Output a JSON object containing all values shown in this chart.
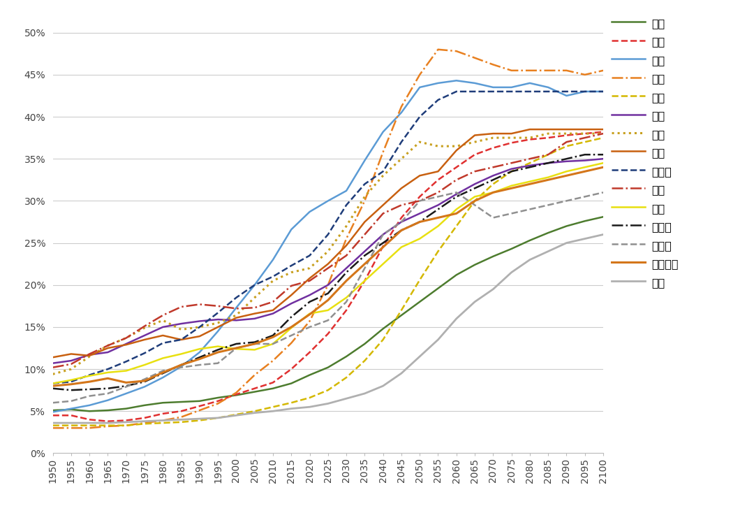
{
  "years": [
    1950,
    1955,
    1960,
    1965,
    1970,
    1975,
    1980,
    1985,
    1990,
    1995,
    2000,
    2005,
    2010,
    2015,
    2020,
    2025,
    2030,
    2035,
    2040,
    2045,
    2050,
    2055,
    2060,
    2065,
    2070,
    2075,
    2080,
    2085,
    2090,
    2095,
    2100
  ],
  "series": [
    {
      "name": "世界",
      "color": "#4d7c2e",
      "linestyle": "solid",
      "linewidth": 1.8,
      "data": [
        5.1,
        5.2,
        5.0,
        5.1,
        5.3,
        5.7,
        6.0,
        6.1,
        6.2,
        6.6,
        6.9,
        7.3,
        7.7,
        8.3,
        9.3,
        10.2,
        11.5,
        13.0,
        14.8,
        16.4,
        18.0,
        19.6,
        21.2,
        22.4,
        23.4,
        24.3,
        25.3,
        26.2,
        27.0,
        27.6,
        28.1
      ]
    },
    {
      "name": "中国",
      "color": "#e03030",
      "linestyle": "dashed",
      "linewidth": 1.8,
      "data": [
        4.5,
        4.5,
        4.0,
        3.8,
        3.9,
        4.2,
        4.7,
        5.0,
        5.6,
        6.2,
        7.0,
        7.7,
        8.4,
        10.0,
        12.0,
        14.2,
        17.0,
        20.5,
        24.6,
        28.0,
        30.5,
        32.5,
        34.0,
        35.5,
        36.3,
        36.9,
        37.3,
        37.5,
        37.8,
        38.0,
        38.2
      ]
    },
    {
      "name": "日本",
      "color": "#5b9bd5",
      "linestyle": "solid",
      "linewidth": 1.8,
      "data": [
        4.9,
        5.3,
        5.7,
        6.3,
        7.1,
        7.9,
        9.0,
        10.3,
        12.0,
        14.5,
        17.3,
        20.0,
        23.0,
        26.6,
        28.7,
        30.0,
        31.2,
        34.8,
        38.2,
        40.5,
        43.5,
        44.0,
        44.3,
        44.0,
        43.5,
        43.5,
        44.0,
        43.5,
        42.5,
        43.0,
        43.0
      ]
    },
    {
      "name": "韩国",
      "color": "#e88020",
      "linestyle": "dashdot",
      "linewidth": 1.8,
      "data": [
        3.0,
        3.0,
        3.0,
        3.2,
        3.3,
        3.6,
        3.9,
        4.3,
        5.1,
        5.9,
        7.2,
        9.3,
        11.0,
        13.1,
        15.7,
        20.0,
        25.5,
        30.0,
        35.8,
        41.2,
        45.0,
        48.0,
        47.8,
        47.0,
        46.2,
        45.5,
        45.5,
        45.5,
        45.5,
        45.0,
        45.5
      ]
    },
    {
      "name": "印度",
      "color": "#d4b800",
      "linestyle": "dashed",
      "linewidth": 1.8,
      "data": [
        3.3,
        3.3,
        3.3,
        3.3,
        3.3,
        3.5,
        3.6,
        3.7,
        3.9,
        4.2,
        4.6,
        5.0,
        5.5,
        6.0,
        6.6,
        7.5,
        9.0,
        11.0,
        13.5,
        17.0,
        20.6,
        24.0,
        27.0,
        30.0,
        32.0,
        33.5,
        34.5,
        35.5,
        36.5,
        37.0,
        37.5
      ]
    },
    {
      "name": "英国",
      "color": "#7030a0",
      "linestyle": "solid",
      "linewidth": 1.8,
      "data": [
        10.7,
        11.0,
        11.7,
        12.0,
        13.0,
        14.0,
        15.0,
        15.4,
        15.7,
        15.9,
        15.8,
        16.0,
        16.6,
        17.8,
        18.8,
        20.0,
        22.0,
        24.0,
        26.0,
        27.5,
        28.5,
        29.5,
        30.8,
        32.0,
        33.0,
        33.8,
        34.2,
        34.5,
        34.7,
        34.8,
        35.0
      ]
    },
    {
      "name": "德国",
      "color": "#c8a020",
      "linestyle": "dotted",
      "linewidth": 2.2,
      "data": [
        9.4,
        10.0,
        11.5,
        12.8,
        13.7,
        14.9,
        15.8,
        14.7,
        15.0,
        15.5,
        16.4,
        18.5,
        20.5,
        21.5,
        22.0,
        24.0,
        27.0,
        30.5,
        33.0,
        35.0,
        37.0,
        36.5,
        36.5,
        37.0,
        37.5,
        37.5,
        37.5,
        38.0,
        38.0,
        38.0,
        38.0
      ]
    },
    {
      "name": "法国",
      "color": "#c86010",
      "linestyle": "solid",
      "linewidth": 1.8,
      "data": [
        11.4,
        11.8,
        11.6,
        12.5,
        12.9,
        13.5,
        14.0,
        13.5,
        13.9,
        15.0,
        16.1,
        16.6,
        17.0,
        18.8,
        20.8,
        22.5,
        24.7,
        27.5,
        29.5,
        31.5,
        33.0,
        33.5,
        36.0,
        37.8,
        38.0,
        38.0,
        38.5,
        38.5,
        38.5,
        38.5,
        38.5
      ]
    },
    {
      "name": "意大利",
      "color": "#1f3d7a",
      "linestyle": "dashed",
      "linewidth": 1.8,
      "data": [
        8.3,
        8.5,
        9.3,
        10.0,
        10.9,
        11.9,
        13.1,
        13.5,
        15.0,
        16.7,
        18.5,
        20.0,
        21.0,
        22.3,
        23.5,
        26.0,
        29.5,
        32.0,
        33.5,
        37.0,
        40.0,
        42.0,
        43.0,
        43.0,
        43.0,
        43.0,
        43.0,
        43.0,
        43.0,
        43.0,
        43.0
      ]
    },
    {
      "name": "瑞典",
      "color": "#c0392b",
      "linestyle": "dashdot",
      "linewidth": 1.8,
      "data": [
        10.2,
        10.6,
        11.8,
        12.8,
        13.7,
        15.1,
        16.4,
        17.4,
        17.7,
        17.5,
        17.2,
        17.3,
        18.0,
        19.9,
        20.5,
        22.0,
        23.5,
        26.0,
        28.5,
        29.5,
        30.0,
        31.0,
        32.5,
        33.5,
        34.0,
        34.5,
        35.0,
        35.5,
        37.0,
        37.5,
        38.0
      ]
    },
    {
      "name": "美国",
      "color": "#e8e010",
      "linestyle": "solid",
      "linewidth": 1.8,
      "data": [
        8.3,
        8.7,
        9.2,
        9.6,
        9.8,
        10.5,
        11.3,
        11.8,
        12.4,
        12.7,
        12.4,
        12.3,
        13.0,
        14.9,
        16.6,
        17.0,
        18.5,
        20.5,
        22.5,
        24.5,
        25.5,
        27.0,
        29.0,
        30.5,
        31.0,
        31.8,
        32.3,
        32.8,
        33.5,
        34.0,
        34.5
      ]
    },
    {
      "name": "加拿大",
      "color": "#1a1a1a",
      "linestyle": "dashdot",
      "linewidth": 1.8,
      "data": [
        7.7,
        7.5,
        7.6,
        7.7,
        8.0,
        8.5,
        9.5,
        10.5,
        11.4,
        12.3,
        13.0,
        13.2,
        14.0,
        16.2,
        18.0,
        19.0,
        21.5,
        23.5,
        25.0,
        26.5,
        27.5,
        29.0,
        30.5,
        31.5,
        32.5,
        33.5,
        34.0,
        34.5,
        35.0,
        35.5,
        35.5
      ]
    },
    {
      "name": "俄罗斯",
      "color": "#909090",
      "linestyle": "dashed",
      "linewidth": 1.8,
      "data": [
        6.0,
        6.2,
        6.8,
        7.1,
        7.9,
        8.8,
        9.8,
        10.2,
        10.5,
        10.7,
        12.5,
        13.0,
        13.0,
        14.0,
        15.0,
        15.8,
        18.0,
        22.0,
        26.0,
        27.5,
        30.0,
        30.5,
        31.0,
        29.5,
        28.0,
        28.5,
        29.0,
        29.5,
        30.0,
        30.5,
        31.0
      ]
    },
    {
      "name": "澳大利亚",
      "color": "#d4761a",
      "linestyle": "solid",
      "linewidth": 2.2,
      "data": [
        8.0,
        8.2,
        8.5,
        8.9,
        8.4,
        8.6,
        9.6,
        10.5,
        11.2,
        12.0,
        12.5,
        13.0,
        13.8,
        15.0,
        16.5,
        18.2,
        20.5,
        22.5,
        24.5,
        26.5,
        27.5,
        28.0,
        28.5,
        30.0,
        31.0,
        31.5,
        32.0,
        32.5,
        33.0,
        33.5,
        34.0
      ]
    },
    {
      "name": "埃及",
      "color": "#b0b0b0",
      "linestyle": "solid",
      "linewidth": 2.0,
      "data": [
        3.6,
        3.6,
        3.6,
        3.6,
        3.7,
        3.8,
        3.9,
        4.0,
        4.1,
        4.2,
        4.5,
        4.8,
        5.0,
        5.3,
        5.5,
        5.9,
        6.5,
        7.1,
        8.0,
        9.5,
        11.5,
        13.5,
        16.0,
        18.0,
        19.5,
        21.5,
        23.0,
        24.0,
        25.0,
        25.5,
        26.0
      ]
    }
  ],
  "legend_names": [
    "世界",
    "中国",
    "日本",
    "韩国",
    "印度",
    "英国",
    "德国",
    "法国",
    "意大利",
    "瑞典",
    "美国",
    "加拿大",
    "俄罗斯",
    "澳大利亚",
    "埃及"
  ],
  "yticks": [
    0,
    5,
    10,
    15,
    20,
    25,
    30,
    35,
    40,
    45,
    50
  ],
  "ylim": [
    0,
    52
  ],
  "background_color": "#ffffff",
  "grid_color": "#cccccc"
}
